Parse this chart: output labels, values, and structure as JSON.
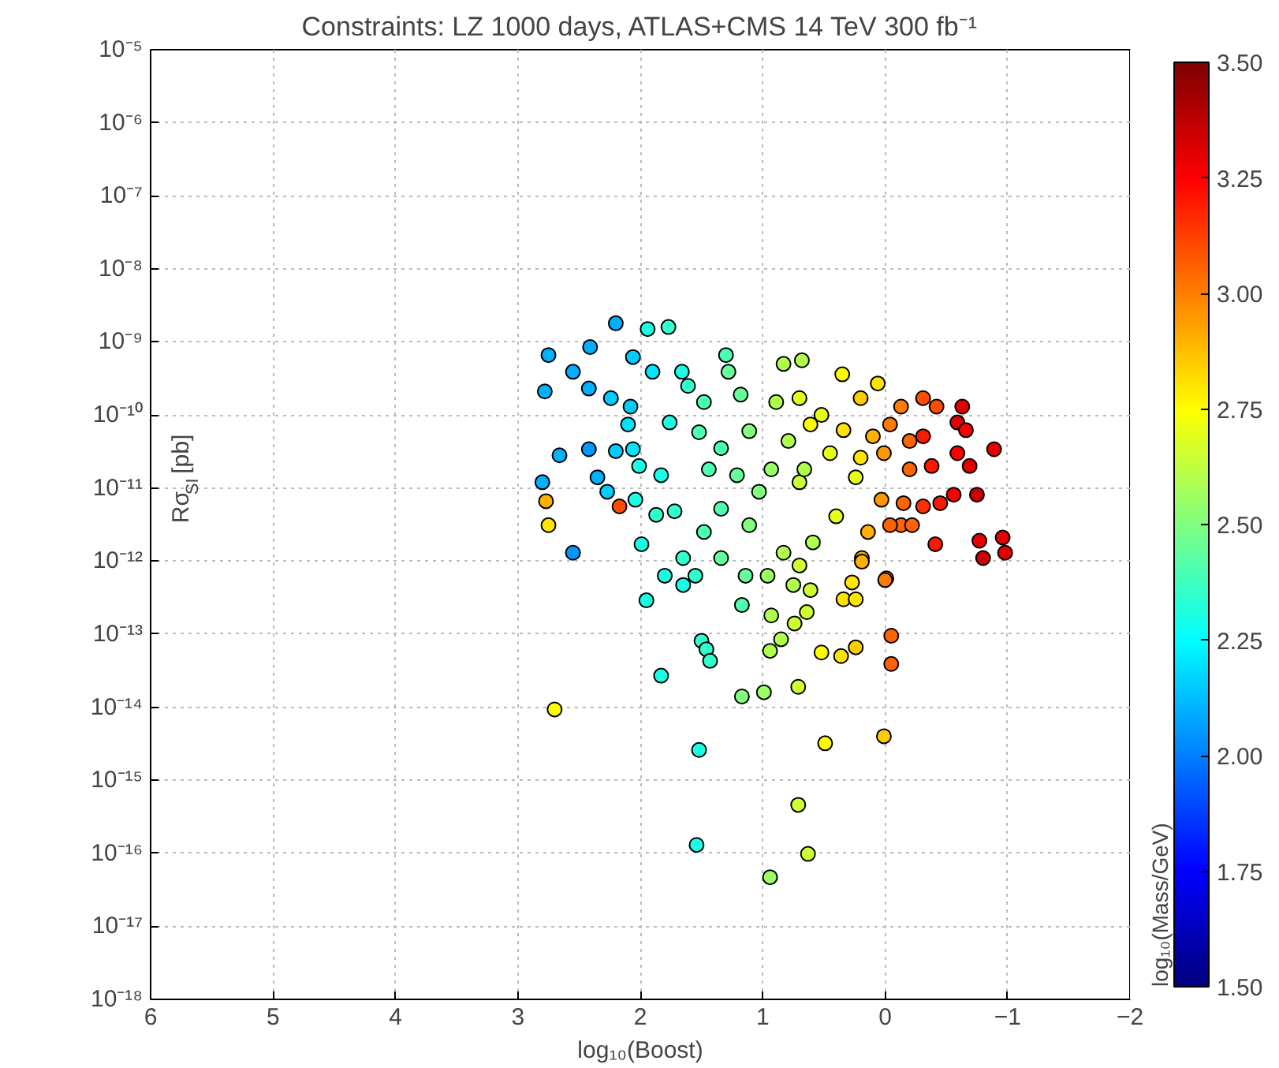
{
  "chart_data": {
    "type": "scatter",
    "title": "Constraints: LZ 1000 days, ATLAS+CMS 14 TeV 300 fb⁻¹",
    "xlabel": "log₁₀(Boost)",
    "ylabel": "Rσ$_{SI}$ [pb]",
    "clabel": "log₁₀(Mass/GeV)",
    "log": "y",
    "grid": true,
    "marker": "circle",
    "xlim": [
      6,
      -2
    ],
    "xticks": [
      6,
      5,
      4,
      3,
      2,
      1,
      0,
      {
        "value": -1,
        "label": "−1"
      },
      {
        "value": -2,
        "label": "−2"
      }
    ],
    "ylim": [
      1e-18,
      1e-05
    ],
    "yticks": [
      {
        "value": 1e-18,
        "label": "10⁻¹⁸"
      },
      {
        "value": 1e-17,
        "label": "10⁻¹⁷"
      },
      {
        "value": 1e-16,
        "label": "10⁻¹⁶"
      },
      {
        "value": 1e-15,
        "label": "10⁻¹⁵"
      },
      {
        "value": 1e-14,
        "label": "10⁻¹⁴"
      },
      {
        "value": 1e-13,
        "label": "10⁻¹³"
      },
      {
        "value": 1e-12,
        "label": "10⁻¹²"
      },
      {
        "value": 1e-11,
        "label": "10⁻¹¹"
      },
      {
        "value": 1e-10,
        "label": "10⁻¹⁰"
      },
      {
        "value": 1e-09,
        "label": "10⁻⁹"
      },
      {
        "value": 1e-08,
        "label": "10⁻⁸"
      },
      {
        "value": 1e-07,
        "label": "10⁻⁷"
      },
      {
        "value": 1e-06,
        "label": "10⁻⁶"
      },
      {
        "value": 1e-05,
        "label": "10⁻⁵"
      }
    ],
    "clim": [
      1.5,
      3.5
    ],
    "cticks": [
      {
        "value": 1.5,
        "label": "1.50"
      },
      {
        "value": 1.75,
        "label": "1.75"
      },
      {
        "value": 2.0,
        "label": "2.00"
      },
      {
        "value": 2.25,
        "label": "2.25"
      },
      {
        "value": 2.5,
        "label": "2.50"
      },
      {
        "value": 2.75,
        "label": "2.75"
      },
      {
        "value": 3.0,
        "label": "3.00"
      },
      {
        "value": 3.25,
        "label": "3.25"
      },
      {
        "value": 3.5,
        "label": "3.50"
      }
    ],
    "x": [
      2.2,
      1.94,
      1.77,
      2.75,
      2.41,
      2.06,
      2.78,
      2.55,
      2.42,
      2.24,
      1.9,
      1.66,
      2.08,
      2.1,
      1.76,
      2.66,
      2.42,
      2.2,
      2.06,
      2.8,
      2.77,
      2.75,
      2.17,
      2.35,
      2.27,
      2.04,
      2.01,
      1.83,
      2.55,
      1.87,
      1.72,
      1.99,
      1.8,
      1.65,
      1.48,
      1.3,
      1.61,
      1.18,
      1.52,
      1.34,
      1.11,
      1.44,
      1.21,
      1.03,
      1.34,
      1.48,
      1.11,
      1.34,
      0.83,
      0.89,
      0.79,
      0.93,
      0.7,
      0.7,
      0.61,
      0.83,
      0.7,
      0.68,
      0.35,
      0.06,
      0.52,
      0.2,
      -0.13,
      -0.31,
      -0.42,
      -0.63,
      -0.59,
      -0.66,
      -0.31,
      -0.04,
      0.1,
      0.34,
      -0.2,
      -0.89,
      -0.59,
      -0.69,
      -0.38,
      -0.2,
      0.01,
      0.2,
      0.45,
      0.66,
      0.24,
      0.03,
      -0.15,
      -0.31,
      -0.45,
      -0.56,
      -0.75,
      -0.13,
      -0.04,
      -0.22,
      0.14,
      0.4,
      -0.41,
      -0.77,
      -0.8,
      0.19,
      0.59,
      -0.01,
      1.28,
      -0.96,
      -0.98,
      1.65,
      1.95,
      1.55,
      1.14,
      0.96,
      0.75,
      0.61,
      1.17,
      0.93,
      0.74,
      0.64,
      0.34,
      0.24,
      0.27,
      0.19,
      0.0,
      -0.05,
      -0.05,
      0.24,
      0.36,
      0.52,
      0.85,
      0.94,
      1.5,
      1.46,
      1.43,
      1.83,
      1.17,
      0.99,
      0.71,
      2.7,
      1.52,
      0.49,
      0.01,
      0.71,
      1.54,
      0.63,
      0.94
    ],
    "values": [
      1.8e-09,
      1.5e-09,
      1.6e-09,
      6.6e-10,
      8.5e-10,
      6.2e-10,
      2.1e-10,
      3.9e-10,
      2.3e-10,
      1.7e-10,
      3.9e-10,
      3.9e-10,
      1.3e-10,
      7.4e-11,
      7.9e-11,
      2.8e-11,
      3.4e-11,
      3.2e-11,
      3.4e-11,
      1.2e-11,
      6.6e-12,
      3.1e-12,
      5.6e-12,
      1.4e-11,
      8.9e-12,
      6.9e-12,
      2e-11,
      1.5e-11,
      1.3e-12,
      4.3e-12,
      4.8e-12,
      1.7e-12,
      6.3e-13,
      1.1e-12,
      1.5e-10,
      6.6e-10,
      2.5e-10,
      1.9e-10,
      5.8e-11,
      3.5e-11,
      6e-11,
      1.8e-11,
      1.5e-11,
      8.9e-12,
      5.2e-12,
      2.5e-12,
      3.1e-12,
      1.1e-12,
      5e-10,
      1.5e-10,
      4.4e-11,
      1.8e-11,
      1.2e-11,
      1.7e-10,
      7.4e-11,
      1.3e-12,
      8.7e-13,
      5.6e-10,
      3.6e-10,
      2.7e-10,
      1e-10,
      1.7e-10,
      1.3e-10,
      1.7e-10,
      1.3e-10,
      1.3e-10,
      7.9e-11,
      6.2e-11,
      5.1e-11,
      7.4e-11,
      5.1e-11,
      6.2e-11,
      4.4e-11,
      3.4e-11,
      3e-11,
      2e-11,
      2e-11,
      1.8e-11,
      3e-11,
      2.6e-11,
      3e-11,
      1.8e-11,
      1.4e-11,
      6.9e-12,
      6.2e-12,
      5.6e-12,
      6.2e-12,
      8.1e-12,
      8.1e-12,
      3.1e-12,
      3.1e-12,
      3.1e-12,
      2.5e-12,
      4.1e-12,
      1.7e-12,
      1.9e-12,
      1.1e-12,
      1.1e-12,
      1.8e-12,
      5.8e-13,
      3.9e-10,
      2.1e-12,
      1.3e-12,
      4.7e-13,
      2.9e-13,
      6.3e-13,
      6.3e-13,
      6.3e-13,
      4.7e-13,
      4e-13,
      2.5e-13,
      1.8e-13,
      1.4e-13,
      2e-13,
      3e-13,
      3e-13,
      5.1e-13,
      9.8e-13,
      5.5e-13,
      9.5e-14,
      3.9e-14,
      6.6e-14,
      5e-14,
      5.6e-14,
      8.5e-14,
      5.9e-14,
      8.1e-14,
      6.2e-14,
      4.3e-14,
      2.7e-14,
      1.4e-14,
      1.6e-14,
      1.9e-14,
      9.3e-15,
      2.6e-15,
      3.2e-15,
      4e-15,
      4.6e-16,
      1.3e-16,
      9.8e-17,
      4.7e-17
    ],
    "cvalues": [
      2.1,
      2.3,
      2.35,
      2.1,
      2.1,
      2.15,
      2.1,
      2.1,
      2.1,
      2.15,
      2.2,
      2.3,
      2.15,
      2.2,
      2.3,
      2.1,
      2.05,
      2.15,
      2.2,
      2.1,
      2.9,
      2.8,
      3.1,
      2.1,
      2.15,
      2.3,
      2.3,
      2.3,
      2.05,
      2.35,
      2.35,
      2.3,
      2.3,
      2.35,
      2.4,
      2.4,
      2.35,
      2.45,
      2.4,
      2.4,
      2.5,
      2.4,
      2.45,
      2.5,
      2.4,
      2.4,
      2.5,
      2.45,
      2.6,
      2.6,
      2.6,
      2.55,
      2.65,
      2.7,
      2.75,
      2.6,
      2.65,
      2.6,
      2.75,
      2.8,
      2.7,
      2.85,
      3.0,
      3.1,
      3.1,
      3.3,
      3.3,
      3.25,
      3.2,
      3.0,
      2.9,
      2.8,
      3.05,
      3.3,
      3.25,
      3.3,
      3.2,
      3.05,
      2.95,
      2.8,
      2.7,
      2.6,
      2.7,
      2.95,
      3.05,
      3.15,
      3.2,
      3.25,
      3.35,
      3.05,
      3.05,
      3.05,
      2.9,
      2.7,
      3.2,
      3.3,
      3.35,
      2.9,
      2.6,
      2.9,
      2.45,
      3.3,
      3.3,
      2.3,
      2.3,
      2.35,
      2.45,
      2.55,
      2.6,
      2.65,
      2.4,
      2.6,
      2.65,
      2.65,
      2.8,
      2.8,
      2.8,
      2.9,
      3.0,
      3.05,
      3.05,
      2.85,
      2.8,
      2.75,
      2.6,
      2.6,
      2.35,
      2.35,
      2.35,
      2.3,
      2.5,
      2.55,
      2.65,
      2.75,
      2.3,
      2.75,
      2.85,
      2.65,
      2.3,
      2.65,
      2.55
    ]
  }
}
